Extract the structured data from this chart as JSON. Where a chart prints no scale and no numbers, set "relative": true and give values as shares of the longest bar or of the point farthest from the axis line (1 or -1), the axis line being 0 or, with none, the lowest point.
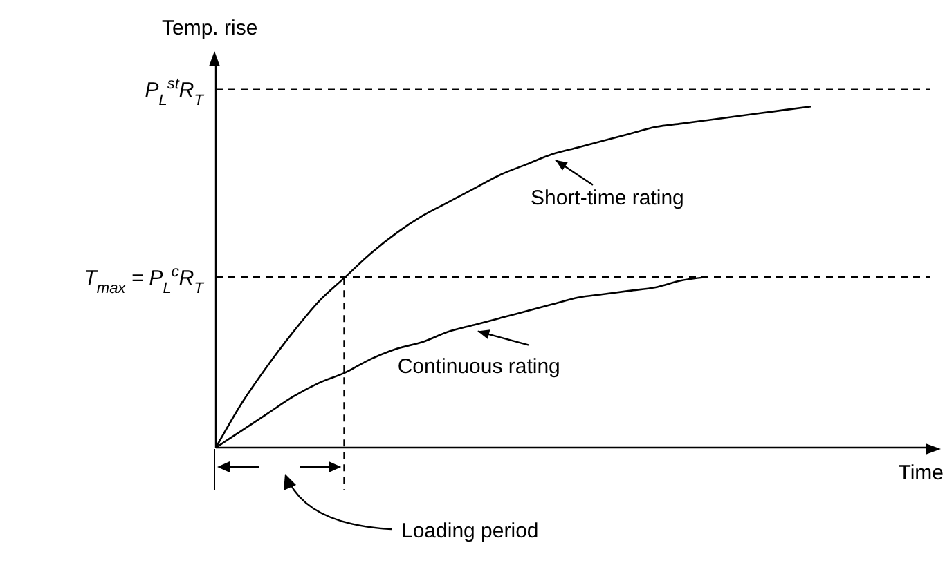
{
  "chart_data": {
    "type": "line",
    "relative": true,
    "ylabel": "Temp. rise",
    "xlabel": "Time",
    "marker": "none",
    "legend": "center",
    "line_style": "solid",
    "categories": [
      null,
      null,
      null,
      null,
      null,
      null,
      null,
      null,
      null,
      null,
      null,
      null,
      null,
      null,
      null,
      null,
      null,
      null,
      null,
      null,
      null,
      null,
      null,
      null
    ],
    "series": [
      {
        "name": "Short-time rating",
        "color": "#000000",
        "values": [
          0,
          0.13,
          0.24,
          0.34,
          0.43,
          0.5,
          0.57,
          0.63,
          0.68,
          0.72,
          0.76,
          0.8,
          0.83,
          0.86,
          0.88,
          0.9,
          0.92,
          0.94,
          0.95,
          0.96,
          0.97,
          0.98,
          0.99,
          1
        ]
      },
      {
        "name": "Continuous rating",
        "color": "#000000",
        "values": [
          0,
          0.05,
          0.1,
          0.15,
          0.19,
          0.22,
          0.26,
          0.29,
          0.31,
          0.34,
          0.36,
          0.38,
          0.4,
          0.42,
          0.44,
          0.45,
          0.46,
          0.47,
          0.49,
          0.5,
          null,
          null,
          null,
          null
        ]
      }
    ],
    "ref_lines": [
      {
        "axis": "y",
        "value": 1.05,
        "label": "P$_{L}$$^{st}$R$_{T}$",
        "line_style": "dashed",
        "color": "#000000"
      },
      {
        "axis": "y",
        "value": 0.5,
        "label": "T$_{max}$ = P$_{L}$$^{c}$R$_{T}$",
        "line_style": "dashed",
        "color": "#000000"
      }
    ],
    "annotations": [
      "Loading period"
    ]
  }
}
